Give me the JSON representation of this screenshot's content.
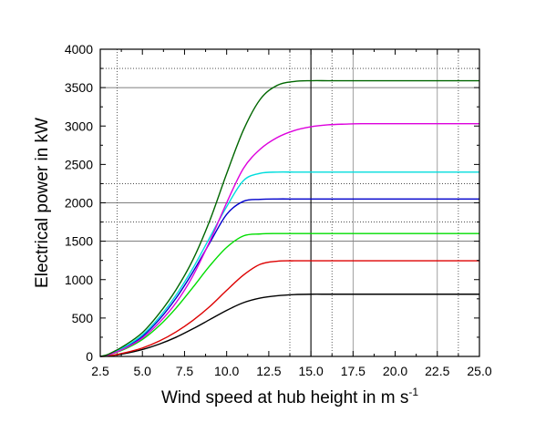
{
  "chart_data": {
    "type": "line",
    "xlabel": "Wind speed at hub height in m s",
    "xlabel_superscript": "-1",
    "ylabel": "Electrical power in kW",
    "xlim": [
      2.5,
      25.0
    ],
    "ylim": [
      0,
      4000
    ],
    "x_ticks": [
      "2.5",
      "5.0",
      "7.5",
      "10.0",
      "12.5",
      "15.0",
      "17.5",
      "20.0",
      "22.5",
      "25.0"
    ],
    "y_ticks": [
      "0",
      "500",
      "1000",
      "1500",
      "2000",
      "2500",
      "3000",
      "3500",
      "4000"
    ],
    "grid": "partial reference lines",
    "reference_lines": {
      "horizontal_solid": [
        1500,
        2000,
        3500
      ],
      "horizontal_dotted": [
        1750,
        2250,
        3750
      ],
      "vertical_solid": [
        15.0,
        17.5,
        22.5
      ],
      "vertical_dotted": [
        3.5,
        13.75,
        16.25,
        23.75
      ]
    },
    "x": [
      2.5,
      3.0,
      4.0,
      5.0,
      6.0,
      7.0,
      8.0,
      9.0,
      10.0,
      11.0,
      12.0,
      13.0,
      14.0,
      15.0,
      16.0,
      17.0,
      18.0,
      19.0,
      20.0,
      21.0,
      22.0,
      23.0,
      24.0,
      25.0
    ],
    "series": [
      {
        "color": "#000000",
        "values": [
          0,
          5,
          40,
          90,
          160,
          250,
          360,
          480,
          600,
          700,
          760,
          790,
          805,
          810,
          810,
          810,
          810,
          810,
          810,
          810,
          810,
          810,
          810,
          810
        ]
      },
      {
        "color": "#dd0000",
        "values": [
          0,
          6,
          50,
          110,
          200,
          320,
          470,
          650,
          860,
          1060,
          1200,
          1240,
          1245,
          1245,
          1245,
          1245,
          1245,
          1245,
          1245,
          1245,
          1245,
          1245,
          1245,
          1245
        ]
      },
      {
        "color": "#00dd00",
        "values": [
          0,
          20,
          100,
          220,
          400,
          630,
          900,
          1180,
          1420,
          1570,
          1595,
          1600,
          1600,
          1600,
          1600,
          1600,
          1600,
          1600,
          1600,
          1600,
          1600,
          1600,
          1600,
          1600
        ]
      },
      {
        "color": "#0000cc",
        "values": [
          0,
          22,
          120,
          260,
          480,
          760,
          1100,
          1480,
          1850,
          2020,
          2045,
          2050,
          2050,
          2050,
          2050,
          2050,
          2050,
          2050,
          2050,
          2050,
          2050,
          2050,
          2050,
          2050
        ]
      },
      {
        "color": "#00dddd",
        "values": [
          0,
          25,
          130,
          280,
          510,
          800,
          1150,
          1550,
          1950,
          2290,
          2385,
          2400,
          2400,
          2400,
          2400,
          2400,
          2400,
          2400,
          2400,
          2400,
          2400,
          2400,
          2400,
          2400
        ]
      },
      {
        "color": "#dd00dd",
        "values": [
          0,
          20,
          110,
          240,
          440,
          700,
          1050,
          1500,
          2000,
          2450,
          2700,
          2850,
          2940,
          2990,
          3015,
          3025,
          3030,
          3030,
          3030,
          3030,
          3030,
          3030,
          3030,
          3030
        ]
      },
      {
        "color": "#006600",
        "values": [
          0,
          30,
          150,
          310,
          560,
          870,
          1260,
          1770,
          2380,
          2950,
          3350,
          3530,
          3580,
          3590,
          3590,
          3590,
          3590,
          3590,
          3590,
          3590,
          3590,
          3590,
          3590,
          3590
        ]
      }
    ]
  }
}
